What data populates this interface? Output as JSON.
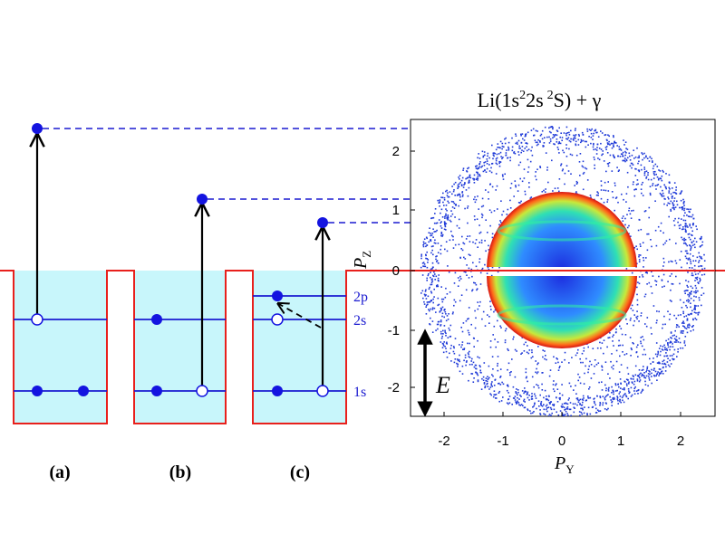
{
  "panels": [
    {
      "label": "(a)"
    },
    {
      "label": "(b)"
    },
    {
      "label": "(c)"
    }
  ],
  "levels": {
    "l2p": "2p",
    "l2s": "2s",
    "l1s": "1s"
  },
  "plot": {
    "title_main": "Li(1s",
    "title_sup1": "2",
    "title_mid": "2s",
    "title_sup2": "2",
    "title_end": "S) + γ",
    "x_ticks": [
      "-2",
      "-1",
      "0",
      "1",
      "2"
    ],
    "y_ticks": [
      "2",
      "1",
      "0",
      "-1",
      "-2"
    ],
    "x_label": "P",
    "x_label_sub": "Y",
    "y_label": "P",
    "y_label_sub": "Z",
    "field_label": "E"
  },
  "colors": {
    "well_fill": "#c8f6fb",
    "well_outline": "#e8201c",
    "level_line": "#1a1ad0",
    "electron": "#1414e0",
    "threshold": "#e8201c"
  }
}
